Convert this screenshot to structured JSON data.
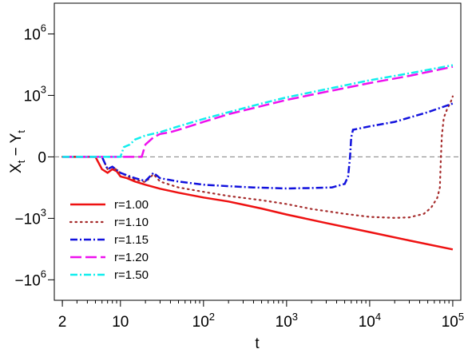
{
  "chart_data": {
    "type": "line",
    "xlabel": "t",
    "ylabel_main": "X",
    "ylabel_sub1": "t",
    "ylabel_sep": " − ",
    "ylabel_main2": "Y",
    "ylabel_sub2": "t",
    "x_scale": "log",
    "xlim": [
      1.6,
      125000
    ],
    "y_scale": "symlog",
    "ylim_symlog": [
      -7.0,
      7.5
    ],
    "x_ticks": [
      {
        "value": 2,
        "base": "2",
        "exp": ""
      },
      {
        "value": 10,
        "base": "10",
        "exp": ""
      },
      {
        "value": 100,
        "base": "10",
        "exp": "2"
      },
      {
        "value": 1000,
        "base": "10",
        "exp": "3"
      },
      {
        "value": 10000,
        "base": "10",
        "exp": "4"
      },
      {
        "value": 100000,
        "base": "10",
        "exp": "5"
      }
    ],
    "y_ticks": [
      {
        "value": 1000000,
        "base": "10",
        "exp": "6"
      },
      {
        "value": 1000,
        "base": "10",
        "exp": "3"
      },
      {
        "value": 0,
        "base": "0",
        "exp": ""
      },
      {
        "value": -1000,
        "base": "−10",
        "exp": "3"
      },
      {
        "value": -1000000,
        "base": "−10",
        "exp": "6"
      }
    ],
    "reference_line": {
      "y": 0,
      "style": "dashed",
      "color": "#808080"
    },
    "grid": false,
    "legend_position": "bottom-left",
    "series": [
      {
        "name": "r=1.00",
        "color": "#ee1111",
        "style": "solid",
        "points": [
          [
            2,
            0
          ],
          [
            5,
            0
          ],
          [
            6,
            -3
          ],
          [
            7,
            -5
          ],
          [
            8,
            -3
          ],
          [
            9,
            -4
          ],
          [
            10,
            -8
          ],
          [
            12,
            -10
          ],
          [
            15,
            -15
          ],
          [
            20,
            -22
          ],
          [
            30,
            -35
          ],
          [
            50,
            -55
          ],
          [
            100,
            -95
          ],
          [
            200,
            -150
          ],
          [
            500,
            -330
          ],
          [
            1000,
            -650
          ],
          [
            3000,
            -1700
          ],
          [
            10000,
            -4700
          ],
          [
            30000,
            -12000
          ],
          [
            100000,
            -33000
          ]
        ]
      },
      {
        "name": "r=1.10",
        "color": "#a52a2a",
        "style": "dotted",
        "points": [
          [
            2,
            0
          ],
          [
            6,
            0
          ],
          [
            7,
            -3
          ],
          [
            8,
            -2
          ],
          [
            10,
            -5
          ],
          [
            15,
            -12
          ],
          [
            20,
            -16
          ],
          [
            25,
            -6
          ],
          [
            30,
            -15
          ],
          [
            50,
            -30
          ],
          [
            100,
            -50
          ],
          [
            200,
            -80
          ],
          [
            500,
            -130
          ],
          [
            1000,
            -200
          ],
          [
            2000,
            -350
          ],
          [
            5000,
            -600
          ],
          [
            10000,
            -850
          ],
          [
            20000,
            -950
          ],
          [
            30000,
            -900
          ],
          [
            45000,
            -600
          ],
          [
            55000,
            -300
          ],
          [
            65000,
            -100
          ],
          [
            70000,
            -30
          ],
          [
            72000,
            0
          ],
          [
            74000,
            10
          ],
          [
            78000,
            80
          ],
          [
            85000,
            200
          ],
          [
            95000,
            500
          ],
          [
            100000,
            900
          ]
        ]
      },
      {
        "name": "r=1.15",
        "color": "#1111dd",
        "style": "dashdot",
        "points": [
          [
            2,
            0
          ],
          [
            6,
            0
          ],
          [
            7,
            -3
          ],
          [
            8,
            -2
          ],
          [
            10,
            -5
          ],
          [
            15,
            -10
          ],
          [
            20,
            -14
          ],
          [
            25,
            -5
          ],
          [
            30,
            -10
          ],
          [
            50,
            -15
          ],
          [
            100,
            -22
          ],
          [
            200,
            -26
          ],
          [
            400,
            -30
          ],
          [
            1000,
            -34
          ],
          [
            2000,
            -32
          ],
          [
            3500,
            -30
          ],
          [
            5000,
            -20
          ],
          [
            5500,
            -8
          ],
          [
            5800,
            0
          ],
          [
            6000,
            8
          ],
          [
            6300,
            20
          ],
          [
            10000,
            30
          ],
          [
            20000,
            50
          ],
          [
            50000,
            150
          ],
          [
            100000,
            400
          ]
        ]
      },
      {
        "name": "r=1.20",
        "color": "#ee11ee",
        "style": "dashed",
        "points": [
          [
            2,
            0
          ],
          [
            18,
            0
          ],
          [
            20,
            3
          ],
          [
            25,
            8
          ],
          [
            30,
            12
          ],
          [
            40,
            15
          ],
          [
            50,
            20
          ],
          [
            100,
            50
          ],
          [
            200,
            120
          ],
          [
            500,
            300
          ],
          [
            1000,
            600
          ],
          [
            3000,
            1500
          ],
          [
            10000,
            4000
          ],
          [
            30000,
            9000
          ],
          [
            100000,
            25000
          ]
        ]
      },
      {
        "name": "r=1.50",
        "color": "#11eeee",
        "style": "dashdot",
        "points": [
          [
            2,
            0
          ],
          [
            10,
            0
          ],
          [
            11,
            2
          ],
          [
            13,
            3
          ],
          [
            15,
            6
          ],
          [
            20,
            10
          ],
          [
            30,
            15
          ],
          [
            50,
            30
          ],
          [
            100,
            70
          ],
          [
            200,
            150
          ],
          [
            500,
            400
          ],
          [
            1000,
            800
          ],
          [
            3000,
            2000
          ],
          [
            10000,
            5500
          ],
          [
            30000,
            12000
          ],
          [
            100000,
            30000
          ]
        ]
      }
    ]
  }
}
